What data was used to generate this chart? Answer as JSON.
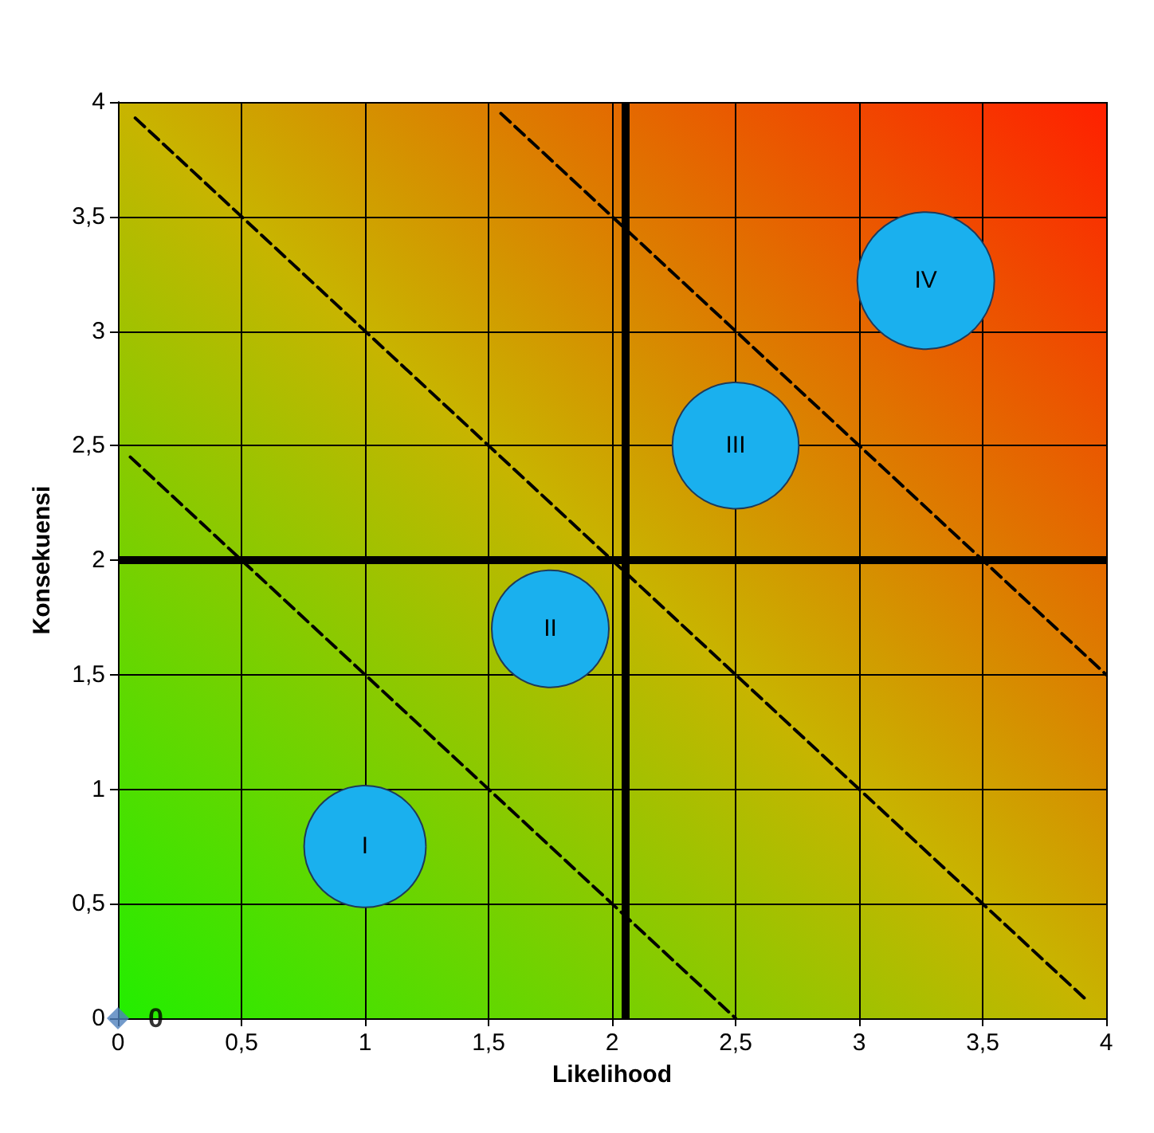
{
  "chart_data": {
    "type": "bubble",
    "xlabel": "Likelihood",
    "ylabel": "Konsekuensi",
    "xlim": [
      0,
      4
    ],
    "ylim": [
      0,
      4
    ],
    "xticks": [
      0,
      {
        "value": 0.5,
        "label": "0,5"
      },
      1,
      {
        "value": 1.5,
        "label": "1,5"
      },
      2,
      {
        "value": 2.5,
        "label": "2,5"
      },
      3,
      {
        "value": 3.5,
        "label": "3,5"
      },
      4
    ],
    "yticks": [
      0,
      {
        "value": 0.5,
        "label": "0,5"
      },
      1,
      {
        "value": 1.5,
        "label": "1,5"
      },
      2,
      {
        "value": 2.5,
        "label": "2,5"
      },
      3,
      {
        "value": 3.5,
        "label": "3,5"
      },
      4
    ],
    "grid": true,
    "legend": false,
    "series": [
      {
        "name": "I",
        "color": "#1ab0ee",
        "x": [
          1
        ],
        "values": [
          0.75
        ],
        "sizes": [
          0.79
        ]
      },
      {
        "name": "II",
        "color": "#1ab0ee",
        "x": [
          1.75
        ],
        "values": [
          1.7
        ],
        "sizes": [
          0.73
        ]
      },
      {
        "name": "III",
        "color": "#1ab0ee",
        "x": [
          2.5
        ],
        "values": [
          2.5
        ],
        "sizes": [
          0.85
        ]
      },
      {
        "name": "IV",
        "color": "#1ab0ee",
        "x": [
          3.27
        ],
        "values": [
          3.22
        ],
        "sizes": [
          1
        ]
      },
      {
        "name": "0",
        "type": "scatter",
        "marker": "diamond",
        "color": "#4f81bd",
        "x": [
          0
        ],
        "values": [
          0
        ]
      },
      {
        "type": "line",
        "color": "#000000",
        "line_style": "dashed",
        "marker": "none",
        "x": [
          0.05,
          2.5
        ],
        "values": [
          2.45,
          0
        ]
      },
      {
        "type": "line",
        "color": "#000000",
        "line_style": "dashed",
        "marker": "none",
        "x": [
          0.07,
          3.93
        ],
        "values": [
          3.93,
          0.07
        ]
      },
      {
        "type": "line",
        "color": "#000000",
        "line_style": "dashed",
        "marker": "none",
        "x": [
          1.55,
          4
        ],
        "values": [
          3.95,
          1.5
        ]
      }
    ],
    "ref_lines": [
      {
        "axis": "x",
        "value": 2.05,
        "color": "#000000"
      },
      {
        "axis": "y",
        "value": 2,
        "color": "#000000"
      }
    ]
  }
}
